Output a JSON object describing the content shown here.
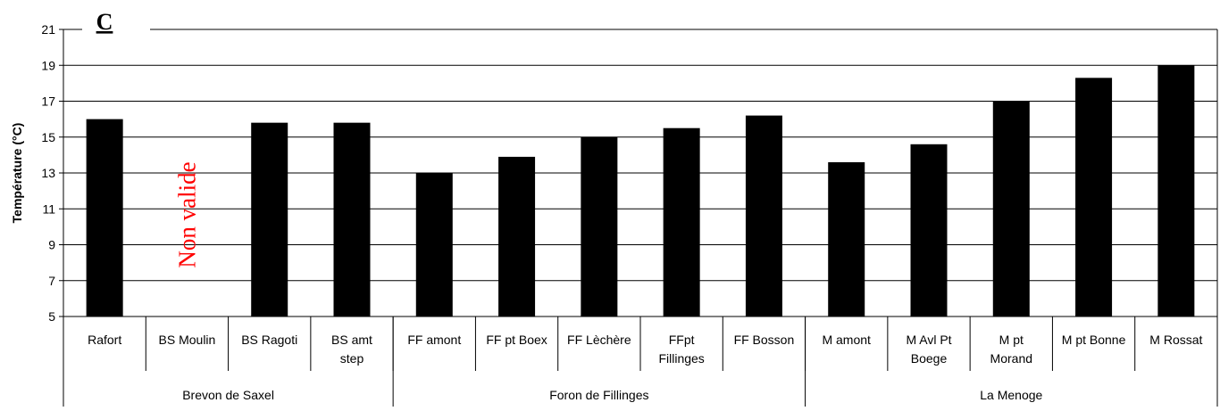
{
  "chart_data": {
    "type": "bar",
    "panel_label": "C",
    "ylabel": "Température (°C)",
    "ylim": [
      5,
      21
    ],
    "yticks": [
      5,
      7,
      9,
      11,
      13,
      15,
      17,
      19,
      21
    ],
    "grid": true,
    "bar_color": "#000000",
    "annotation": {
      "text": "Non valide",
      "category_index": 1,
      "color": "#ff0000"
    },
    "categories": [
      {
        "label_lines": [
          "Rafort"
        ],
        "value": 16.0
      },
      {
        "label_lines": [
          "BS Moulin"
        ],
        "value": null
      },
      {
        "label_lines": [
          "BS Ragoti"
        ],
        "value": 15.8
      },
      {
        "label_lines": [
          "BS amt",
          "step"
        ],
        "value": 15.8
      },
      {
        "label_lines": [
          "FF amont"
        ],
        "value": 13.0
      },
      {
        "label_lines": [
          "FF pt Boex"
        ],
        "value": 13.9
      },
      {
        "label_lines": [
          "FF Lèchère"
        ],
        "value": 15.0
      },
      {
        "label_lines": [
          "FFpt",
          "Fillinges"
        ],
        "value": 15.5
      },
      {
        "label_lines": [
          "FF Bosson"
        ],
        "value": 16.2
      },
      {
        "label_lines": [
          "M amont"
        ],
        "value": 13.6
      },
      {
        "label_lines": [
          "M Avl Pt",
          "Boege"
        ],
        "value": 14.6
      },
      {
        "label_lines": [
          "M pt",
          "Morand"
        ],
        "value": 17.0
      },
      {
        "label_lines": [
          "M pt Bonne"
        ],
        "value": 18.3
      },
      {
        "label_lines": [
          "M Rossat"
        ],
        "value": 19.0
      }
    ],
    "groups": [
      {
        "label": "Brevon de Saxel",
        "count": 4
      },
      {
        "label": "Foron de Fillinges",
        "count": 5
      },
      {
        "label": "La Menoge",
        "count": 5
      }
    ]
  }
}
